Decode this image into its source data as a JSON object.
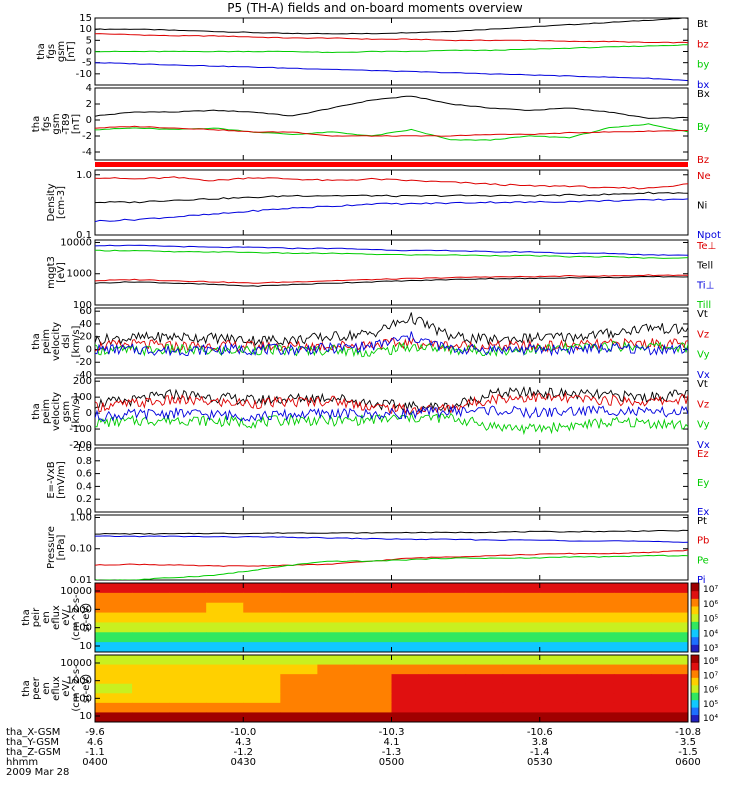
{
  "title": "P5 (TH-A) fields and on-board moments overview",
  "date": "2009 Mar 28",
  "ephemeris": {
    "rows": [
      {
        "label": "tha_X-GSM",
        "values": [
          "-9.6",
          "-10.0",
          "-10.3",
          "-10.6",
          "-10.8"
        ]
      },
      {
        "label": "tha_Y-GSM",
        "values": [
          "4.6",
          "4.3",
          "4.1",
          "3.8",
          "3.5"
        ]
      },
      {
        "label": "tha_Z-GSM",
        "values": [
          "-1.1",
          "-1.2",
          "-1.3",
          "-1.4",
          "-1.5"
        ]
      },
      {
        "label": "hhmm",
        "values": [
          "0400",
          "0430",
          "0500",
          "0530",
          "0600"
        ]
      }
    ]
  },
  "chart_data": [
    {
      "type": "line",
      "id": "p1",
      "ylabel": [
        "tha",
        "fgs",
        "gsm",
        "[nT]"
      ],
      "yticks": [
        "15",
        "10",
        "5",
        "0",
        "-5",
        "-10"
      ],
      "ylim": [
        -15,
        15
      ],
      "series": [
        {
          "name": "Bt",
          "color": "#000000",
          "values": [
            10,
            10,
            9.5,
            9,
            8.5,
            8,
            8,
            8,
            8.5,
            9,
            10,
            11,
            12,
            13,
            14,
            15
          ]
        },
        {
          "name": "bz",
          "color": "#dd0000",
          "values": [
            8,
            7.5,
            7,
            7,
            6.5,
            6,
            6,
            5.5,
            5.5,
            5,
            5,
            5,
            4.5,
            4.5,
            4,
            4
          ]
        },
        {
          "name": "by",
          "color": "#00cc00",
          "values": [
            0,
            0,
            0,
            0,
            0,
            0,
            -0.5,
            0,
            0,
            0.5,
            0.5,
            1,
            1.5,
            2,
            2.5,
            3
          ]
        },
        {
          "name": "bx",
          "color": "#0000dd",
          "values": [
            -5,
            -5.5,
            -6,
            -6.5,
            -7,
            -7.5,
            -8,
            -8.5,
            -9,
            -9.5,
            -10,
            -10.5,
            -11,
            -11.5,
            -12,
            -13
          ]
        }
      ]
    },
    {
      "type": "line",
      "id": "p2",
      "ylabel": [
        "tha",
        "fgs",
        "gsm",
        "-T89",
        "[nT]"
      ],
      "yticks": [
        "4",
        "2",
        "0",
        "-2",
        "-4"
      ],
      "ylim": [
        -5,
        4
      ],
      "series": [
        {
          "name": "Bx",
          "color": "#000000",
          "values": [
            0.5,
            1.0,
            1.0,
            1.2,
            1.0,
            0.5,
            1.5,
            2.5,
            3.0,
            2.0,
            1.5,
            1.2,
            1.5,
            1.0,
            0.2,
            0.3
          ]
        },
        {
          "name": "By",
          "color": "#00cc00",
          "values": [
            -1.2,
            -1.0,
            -1.2,
            -1.0,
            -1.5,
            -1.8,
            -1.5,
            -2.0,
            -1.2,
            -2.5,
            -2.5,
            -2.0,
            -2.2,
            -1.0,
            -0.5,
            -1.5
          ]
        },
        {
          "name": "Bz",
          "color": "#dd0000",
          "values": [
            -1.0,
            -0.8,
            -1.0,
            -1.2,
            -1.5,
            -1.5,
            -2.0,
            -2.0,
            -2.0,
            -2.0,
            -1.8,
            -1.8,
            -1.6,
            -1.5,
            -1.4,
            -1.3
          ]
        }
      ]
    },
    {
      "type": "line",
      "id": "p3",
      "log": true,
      "ylabel": [
        "Density",
        "[cm-3]"
      ],
      "yticks": [
        "1.0",
        "0.1"
      ],
      "ylim": [
        0.1,
        1.2
      ],
      "series": [
        {
          "name": "Ne",
          "color": "#dd0000",
          "values": [
            0.9,
            0.85,
            0.9,
            0.8,
            0.9,
            0.85,
            0.8,
            0.85,
            0.8,
            0.75,
            0.7,
            0.65,
            0.65,
            0.6,
            0.6,
            0.7
          ]
        },
        {
          "name": "Ni",
          "color": "#000000",
          "values": [
            0.35,
            0.35,
            0.38,
            0.4,
            0.42,
            0.45,
            0.45,
            0.45,
            0.44,
            0.45,
            0.45,
            0.45,
            0.46,
            0.47,
            0.5,
            0.5
          ]
        },
        {
          "name": "Npot",
          "color": "#0000dd",
          "values": [
            0.17,
            0.18,
            0.2,
            0.22,
            0.25,
            0.28,
            0.3,
            0.33,
            0.33,
            0.34,
            0.35,
            0.35,
            0.36,
            0.37,
            0.38,
            0.4
          ]
        }
      ]
    },
    {
      "type": "line",
      "id": "p4",
      "log": true,
      "ylabel": [
        "mqgt3",
        "[eV]"
      ],
      "yticks": [
        "10000",
        "1000",
        "100"
      ],
      "ylim": [
        100,
        12000
      ],
      "series": [
        {
          "name": "Te⊥",
          "color": "#dd0000",
          "values": [
            600,
            650,
            600,
            550,
            500,
            550,
            600,
            650,
            700,
            750,
            800,
            800,
            850,
            850,
            900,
            900
          ]
        },
        {
          "name": "Tell",
          "color": "#000000",
          "values": [
            500,
            550,
            500,
            450,
            400,
            450,
            500,
            550,
            600,
            650,
            700,
            700,
            750,
            750,
            800,
            800
          ]
        },
        {
          "name": "Ti⊥",
          "color": "#0000dd",
          "values": [
            8000,
            8000,
            7500,
            7000,
            7000,
            6500,
            6500,
            6000,
            5500,
            5500,
            5000,
            5000,
            4500,
            4500,
            4000,
            4000
          ]
        },
        {
          "name": "Till",
          "color": "#00cc00",
          "values": [
            5500,
            5500,
            5000,
            5000,
            4800,
            4500,
            4500,
            4200,
            4000,
            4000,
            3800,
            3800,
            3500,
            3500,
            3200,
            3200
          ]
        }
      ]
    },
    {
      "type": "line",
      "id": "p5",
      "ylabel": [
        "tha",
        "peim",
        "velocity",
        "dsl",
        "[km/s]"
      ],
      "yticks": [
        "60",
        "40",
        "20",
        "0",
        "-20",
        "-40"
      ],
      "ylim": [
        -40,
        65
      ],
      "series": [
        {
          "name": "Vt",
          "color": "#000000",
          "values": [
            15,
            18,
            20,
            18,
            15,
            15,
            20,
            25,
            50,
            20,
            15,
            18,
            20,
            25,
            35,
            30
          ]
        },
        {
          "name": "Vz",
          "color": "#dd0000",
          "values": [
            5,
            8,
            5,
            6,
            5,
            5,
            6,
            8,
            10,
            6,
            5,
            5,
            6,
            8,
            10,
            8
          ]
        },
        {
          "name": "Vy",
          "color": "#00cc00",
          "values": [
            0,
            -2,
            0,
            -3,
            0,
            -2,
            0,
            -5,
            5,
            0,
            -2,
            0,
            2,
            5,
            5,
            3
          ]
        },
        {
          "name": "Vx",
          "color": "#0000dd",
          "values": [
            0,
            0,
            -2,
            0,
            0,
            0,
            2,
            5,
            20,
            0,
            0,
            0,
            0,
            2,
            0,
            0
          ]
        }
      ]
    },
    {
      "type": "line",
      "id": "p6",
      "ylabel": [
        "tha",
        "peim",
        "velocity",
        "gsm",
        "[km/s]"
      ],
      "yticks": [
        "200",
        "100",
        "0",
        "-100",
        "-200"
      ],
      "ylim": [
        -200,
        220
      ],
      "series": [
        {
          "name": "Vt",
          "color": "#000000",
          "values": [
            60,
            80,
            120,
            100,
            80,
            90,
            100,
            60,
            40,
            40,
            120,
            130,
            120,
            110,
            100,
            120
          ]
        },
        {
          "name": "Vz",
          "color": "#dd0000",
          "values": [
            40,
            60,
            80,
            70,
            60,
            70,
            80,
            40,
            20,
            30,
            90,
            100,
            90,
            80,
            70,
            90
          ]
        },
        {
          "name": "Vy",
          "color": "#00cc00",
          "values": [
            -60,
            -50,
            -40,
            -50,
            -60,
            -40,
            -50,
            -40,
            -30,
            -30,
            -80,
            -100,
            -80,
            -60,
            -60,
            -80
          ]
        },
        {
          "name": "Vx",
          "color": "#0000dd",
          "values": [
            -20,
            -10,
            0,
            -10,
            -20,
            -10,
            0,
            -10,
            0,
            10,
            20,
            0,
            10,
            20,
            0,
            10
          ]
        }
      ]
    },
    {
      "type": "line",
      "id": "p7",
      "ylabel": [
        "E=-VxB",
        "[mV/m]"
      ],
      "yticks": [
        "1.0",
        "0.8",
        "0.6",
        "0.4",
        "0.2",
        "0.0"
      ],
      "ylim": [
        0,
        1
      ],
      "series": [
        {
          "name": "Ez",
          "color": "#dd0000",
          "values": []
        },
        {
          "name": "Ey",
          "color": "#00cc00",
          "values": []
        },
        {
          "name": "Ex",
          "color": "#0000dd",
          "values": []
        }
      ]
    },
    {
      "type": "line",
      "id": "p8",
      "log": true,
      "ylabel": [
        "Pressure",
        "[nPa]"
      ],
      "yticks": [
        "1.00",
        "0.10",
        "0.01"
      ],
      "ylim": [
        0.01,
        1.2
      ],
      "series": [
        {
          "name": "Pt",
          "color": "#000000",
          "values": [
            0.3,
            0.3,
            0.3,
            0.31,
            0.31,
            0.32,
            0.32,
            0.32,
            0.33,
            0.33,
            0.34,
            0.35,
            0.35,
            0.36,
            0.37,
            0.38
          ]
        },
        {
          "name": "Pb",
          "color": "#dd0000",
          "values": [
            0.03,
            0.032,
            0.03,
            0.028,
            0.028,
            0.03,
            0.032,
            0.04,
            0.05,
            0.055,
            0.06,
            0.065,
            0.07,
            0.07,
            0.075,
            0.09
          ]
        },
        {
          "name": "Pe",
          "color": "#00cc00",
          "values": [
            0.01,
            0.01,
            0.012,
            0.014,
            0.02,
            0.03,
            0.04,
            0.04,
            0.045,
            0.05,
            0.05,
            0.05,
            0.055,
            0.055,
            0.06,
            0.06
          ]
        },
        {
          "name": "Pi",
          "color": "#0000dd",
          "values": [
            0.25,
            0.25,
            0.25,
            0.24,
            0.24,
            0.23,
            0.22,
            0.21,
            0.2,
            0.2,
            0.19,
            0.19,
            0.18,
            0.18,
            0.17,
            0.16
          ]
        }
      ]
    },
    {
      "type": "heatmap",
      "id": "p9",
      "ylabel": [
        "tha",
        "peir",
        "en",
        "eflux",
        "eV/",
        "(cm^2-s-",
        "sr-eV)"
      ],
      "yticks": [
        "10000",
        "1000",
        "100",
        "10"
      ],
      "colorbar": [
        "10⁷",
        "10⁶",
        "10⁵",
        "10⁴",
        "10³"
      ],
      "rows": [
        [
          7,
          7,
          7,
          7,
          7,
          7,
          7,
          7,
          7,
          7,
          7,
          7,
          7,
          7,
          7,
          7
        ],
        [
          6,
          6,
          6,
          6,
          6,
          6,
          6,
          6,
          6,
          6,
          6,
          6,
          6,
          6,
          6,
          6
        ],
        [
          6,
          6,
          6,
          5,
          6,
          6,
          6,
          6,
          6,
          6,
          6,
          6,
          6,
          6,
          6,
          6
        ],
        [
          5,
          5,
          5,
          5,
          5,
          5,
          5,
          5,
          5,
          5,
          5,
          5,
          5,
          5,
          5,
          5
        ],
        [
          4,
          4,
          4,
          4,
          4,
          4,
          4,
          4,
          4,
          4,
          4,
          4,
          4,
          4,
          4,
          4
        ],
        [
          3,
          3,
          3,
          3,
          3,
          3,
          3,
          3,
          3,
          3,
          3,
          3,
          3,
          3,
          3,
          3
        ],
        [
          2,
          2,
          2,
          2,
          2,
          2,
          2,
          2,
          2,
          2,
          2,
          2,
          2,
          2,
          2,
          2
        ]
      ]
    },
    {
      "type": "heatmap",
      "id": "p10",
      "ylabel": [
        "tha",
        "peer",
        "en",
        "eflux",
        "eV/",
        "(cm^2-s-",
        "sr-eV)"
      ],
      "yticks": [
        "10000",
        "1000",
        "100",
        "10"
      ],
      "colorbar": [
        "10⁸",
        "10⁷",
        "10⁶",
        "10⁵",
        "10⁴"
      ],
      "rows": [
        [
          4,
          4,
          4,
          4,
          4,
          4,
          4,
          4,
          4,
          4,
          4,
          4,
          4,
          4,
          4,
          4
        ],
        [
          5,
          5,
          5,
          5,
          5,
          5,
          6,
          6,
          6,
          6,
          6,
          6,
          6,
          6,
          6,
          6
        ],
        [
          5,
          5,
          5,
          5,
          5,
          6,
          6,
          6,
          7,
          7,
          7,
          7,
          7,
          7,
          7,
          7
        ],
        [
          4,
          5,
          5,
          5,
          5,
          6,
          6,
          6,
          7,
          7,
          7,
          7,
          7,
          7,
          7,
          7
        ],
        [
          5,
          5,
          5,
          5,
          5,
          6,
          6,
          6,
          7,
          7,
          7,
          7,
          7,
          7,
          7,
          7
        ],
        [
          6,
          6,
          6,
          6,
          6,
          6,
          6,
          6,
          7,
          7,
          7,
          7,
          7,
          7,
          7,
          7
        ],
        [
          8,
          8,
          8,
          8,
          8,
          8,
          8,
          8,
          8,
          8,
          8,
          8,
          8,
          8,
          8,
          8
        ]
      ]
    }
  ]
}
